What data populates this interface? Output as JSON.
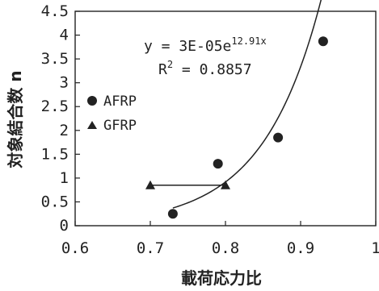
{
  "chart_data": {
    "type": "scatter",
    "xlabel": "載荷応力比",
    "ylabel": "対象結合数 n",
    "xlim": [
      0.6,
      1.0
    ],
    "ylim": [
      0,
      4.5
    ],
    "x_ticks": [
      "0.6",
      "0.7",
      "0.8",
      "0.9",
      "1"
    ],
    "y_ticks": [
      "0",
      "0.5",
      "1",
      "1.5",
      "2",
      "2.5",
      "3",
      "3.5",
      "4",
      "4.5"
    ],
    "grid": false,
    "series": [
      {
        "name": "AFRP",
        "marker": "circle",
        "points": [
          [
            0.73,
            0.25
          ],
          [
            0.79,
            1.3
          ],
          [
            0.87,
            1.85
          ],
          [
            0.93,
            3.87
          ]
        ]
      },
      {
        "name": "GFRP",
        "marker": "triangle",
        "points": [
          [
            0.7,
            0.85
          ],
          [
            0.8,
            0.85
          ]
        ]
      }
    ],
    "trendline": {
      "type": "exponential",
      "coef": 3e-05,
      "exp": 12.91,
      "x_range": [
        0.73,
        0.935
      ],
      "equation": "y = 3E-05e",
      "equation_exp": "12.91x",
      "r2_label": "R",
      "r2_sup": "2",
      "r2_value": " = 0.8857"
    },
    "legend": {
      "position": "left",
      "entries": [
        "AFRP",
        "GFRP"
      ]
    }
  }
}
